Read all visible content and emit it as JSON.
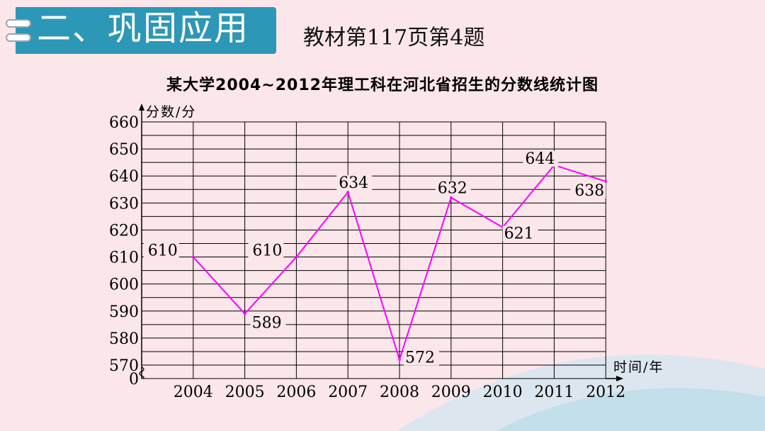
{
  "header": {
    "title": "二、巩固应用",
    "subtitle": "教材第117页第4题"
  },
  "colors": {
    "accent": "#2d97b7",
    "line": "#ff00ff",
    "background": "#fbe6ea"
  },
  "chart_data": {
    "type": "line",
    "title": "某大学2004~2012年理工科在河北省招生的分数线统计图",
    "ylabel": "分数/分",
    "xlabel": "时间/年",
    "categories": [
      "2004",
      "2005",
      "2006",
      "2007",
      "2008",
      "2009",
      "2010",
      "2011",
      "2012"
    ],
    "values": [
      610,
      589,
      610,
      634,
      572,
      632,
      621,
      644,
      638
    ],
    "y_ticks": [
      570,
      580,
      590,
      600,
      610,
      620,
      630,
      640,
      650,
      660
    ],
    "y_origin_label": "0",
    "ylim": [
      570,
      660
    ],
    "axis_break": true,
    "grid": true
  }
}
